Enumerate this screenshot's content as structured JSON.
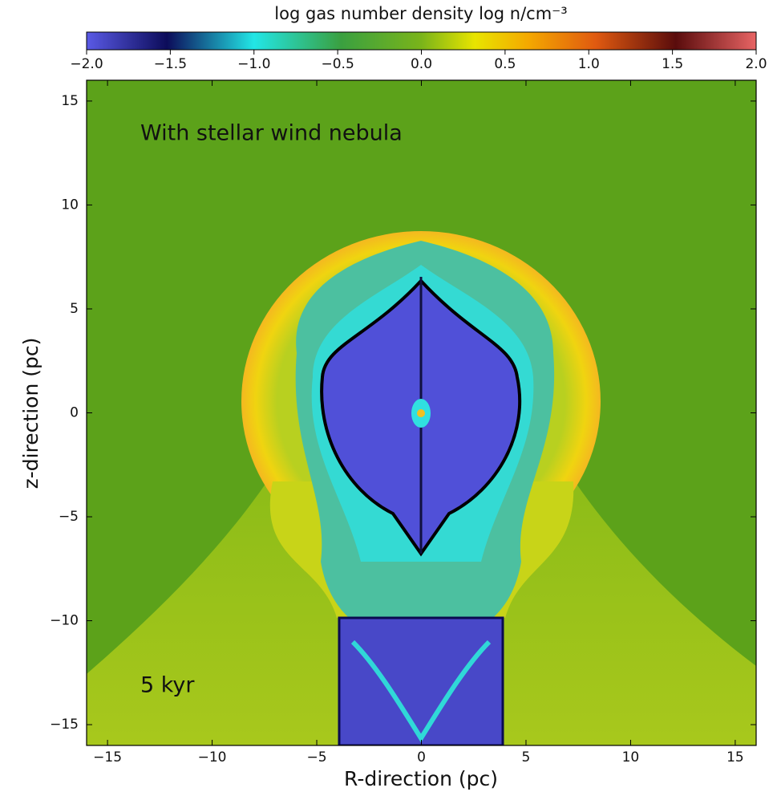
{
  "chart_data": {
    "type": "image",
    "colorbar_label": "log gas number density log n/cm⁻³",
    "colorbar_lim": [
      -2,
      2
    ],
    "colorbar_ticks": [
      {
        "value": -2,
        "label": "−2.0"
      },
      {
        "value": -1.5,
        "label": "−1.5"
      },
      {
        "value": -1,
        "label": "−1.0"
      },
      {
        "value": -0.5,
        "label": "−0.5"
      },
      {
        "value": 0,
        "label": "0.0"
      },
      {
        "value": 0.5,
        "label": "0.5"
      },
      {
        "value": 1,
        "label": "1.0"
      },
      {
        "value": 1.5,
        "label": "1.5"
      },
      {
        "value": 2,
        "label": "2.0"
      }
    ],
    "xlabel": "R-direction (pc)",
    "ylabel": "z-direction (pc)",
    "xlim": [
      -16,
      16
    ],
    "ylim": [
      -16,
      16
    ],
    "xticks": [
      {
        "value": -15,
        "label": "−15"
      },
      {
        "value": -10,
        "label": "−10"
      },
      {
        "value": -5,
        "label": "−5"
      },
      0,
      5,
      10,
      15
    ],
    "yticks": [
      {
        "value": -15,
        "label": "−15"
      },
      {
        "value": -10,
        "label": "−10"
      },
      {
        "value": -5,
        "label": "−5"
      },
      0,
      5,
      10,
      15
    ],
    "annotations": [
      "With stellar wind nebula",
      "5 kyr"
    ]
  }
}
